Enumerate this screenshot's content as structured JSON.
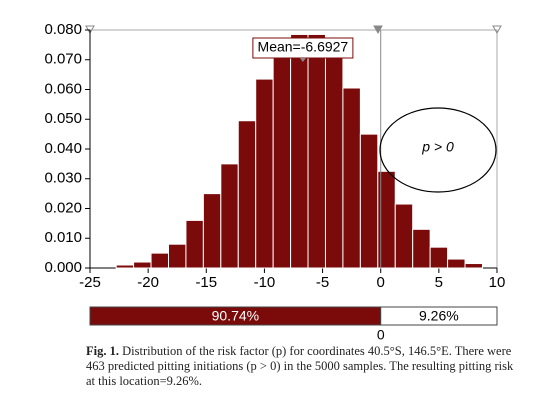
{
  "chart_data": {
    "type": "histogram",
    "bins": [
      -22.75,
      -21.25,
      -19.75,
      -18.25,
      -16.75,
      -15.25,
      -13.75,
      -12.25,
      -10.75,
      -9.25,
      -7.75,
      -6.25,
      -4.75,
      -3.25,
      -1.75,
      -0.25,
      1.25,
      2.75,
      4.25,
      5.75,
      7.25,
      8.75
    ],
    "values": [
      0.001,
      0.002,
      0.005,
      0.008,
      0.016,
      0.025,
      0.035,
      0.0495,
      0.0635,
      0.072,
      0.0785,
      0.0785,
      0.072,
      0.0605,
      0.045,
      0.0325,
      0.0215,
      0.013,
      0.007,
      0.003,
      0.0015
    ],
    "color": "#7b0a0a",
    "xlim": [
      -25,
      10
    ],
    "xticks": [
      -25,
      -20,
      -15,
      -10,
      -5,
      0,
      5,
      10
    ],
    "ylim": [
      0,
      0.08
    ],
    "yticks": [
      {
        "value": 0,
        "label": "0.000"
      },
      {
        "value": 0.01,
        "label": "0.010"
      },
      {
        "value": 0.02,
        "label": "0.020"
      },
      {
        "value": 0.03,
        "label": "0.030"
      },
      {
        "value": 0.04,
        "label": "0.040"
      },
      {
        "value": 0.05,
        "label": "0.050"
      },
      {
        "value": 0.06,
        "label": "0.060"
      },
      {
        "value": 0.07,
        "label": "0.070"
      },
      {
        "value": 0.08,
        "label": "0.080"
      }
    ],
    "mean": {
      "text": "Mean=-6.6927",
      "x": -6.6927
    },
    "threshold": 0,
    "region_label": "p > 0",
    "split_bar": {
      "left_label": "90.74%",
      "right_label": "9.26%",
      "at_label": "0"
    }
  },
  "caption": {
    "label": "Fig. 1.",
    "text": "Distribution of the risk factor (p) for coordinates 40.5°S, 146.5°E. There were 463 predicted pitting initiations (p > 0) in the 5000 samples. The resulting pitting risk at this location=9.26%."
  }
}
